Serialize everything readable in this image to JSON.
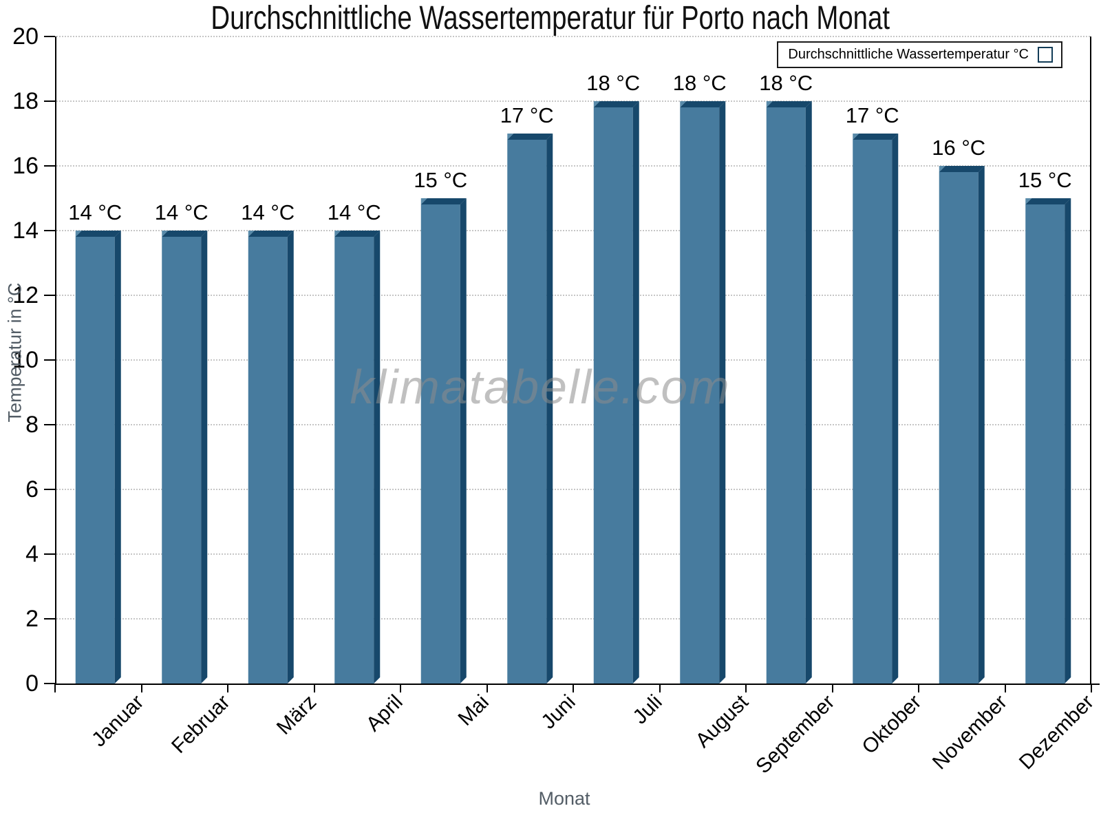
{
  "title": "Durchschnittliche Wassertemperatur für Porto nach Monat",
  "legend": {
    "label": "Durchschnittliche Wassertemperatur °C"
  },
  "watermark": "klimatabelle.com",
  "axes": {
    "xlabel": "Monat",
    "ylabel": "Temperatur in °C"
  },
  "colors": {
    "bar_fill": "#477b9e",
    "bar_edge": "#17486b",
    "bar_highlight": "#588aa9",
    "gridline": "#c6c6c6",
    "axis": "#000000",
    "axis_title": "#535d66",
    "watermark": "#8d8d8d"
  },
  "chart_data": {
    "type": "bar",
    "title": "Durchschnittliche Wassertemperatur für Porto nach Monat",
    "categories": [
      "Januar",
      "Februar",
      "März",
      "April",
      "Mai",
      "Juni",
      "Juli",
      "August",
      "September",
      "Oktober",
      "November",
      "Dezember"
    ],
    "values": [
      14,
      14,
      14,
      14,
      15,
      17,
      18,
      18,
      18,
      17,
      16,
      15
    ],
    "value_suffix": " °C",
    "series_name": "Durchschnittliche Wassertemperatur °C",
    "xlabel": "Monat",
    "ylabel": "Temperatur in °C",
    "ylim": [
      0,
      20
    ],
    "ytick_step": 2,
    "grid": "horizontal-dotted",
    "legend_position": "top-right",
    "bar_style": "3d-bevel"
  }
}
